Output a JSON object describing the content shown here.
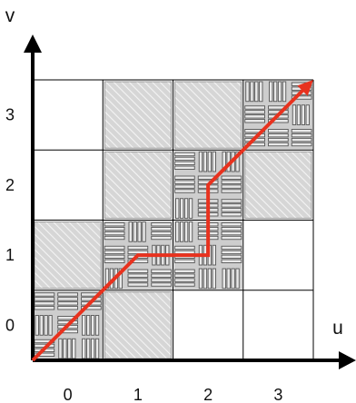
{
  "axes": {
    "x_label": "u",
    "y_label": "v",
    "x_ticks": [
      "0",
      "1",
      "2",
      "3"
    ],
    "y_ticks": [
      "0",
      "1",
      "2",
      "3"
    ]
  },
  "grid": {
    "cols": 4,
    "rows": 4,
    "cells": [
      [
        "weave",
        "hatch",
        "white",
        "white"
      ],
      [
        "hatch",
        "weave",
        "weave",
        "white"
      ],
      [
        "white",
        "hatch",
        "weave",
        "hatch"
      ],
      [
        "white",
        "hatch",
        "hatch",
        "weave"
      ]
    ]
  },
  "path": {
    "color": "#e8321e",
    "points": [
      [
        0,
        0
      ],
      [
        1.5,
        1.5
      ],
      [
        2.5,
        1.5
      ],
      [
        2.5,
        2.5
      ],
      [
        4,
        4
      ]
    ]
  },
  "colors": {
    "hatch_fill": "#d4d4d4",
    "weave_fill": "#cfcfcf",
    "grid_line": "#000000",
    "axis": "#000000"
  }
}
